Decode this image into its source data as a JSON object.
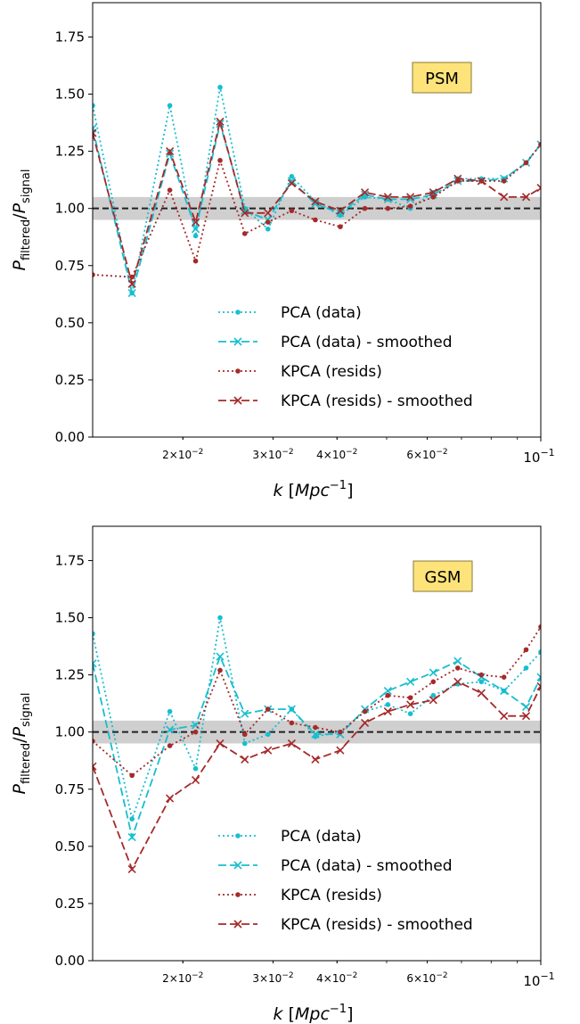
{
  "chart_data": [
    {
      "type": "line",
      "panel_label": "PSM",
      "xlabel": "k [Mpc^{-1}]",
      "ylabel": "P_filtered / P_signal",
      "xscale": "log",
      "xlim": [
        0.01333,
        0.1
      ],
      "ylim": [
        0.0,
        1.9
      ],
      "yticks": [
        "0.00",
        "0.25",
        "0.50",
        "0.75",
        "1.00",
        "1.25",
        "1.50",
        "1.75"
      ],
      "xticks": [
        {
          "value": 0.02,
          "base": "2×10",
          "exp": "−2"
        },
        {
          "value": 0.03,
          "base": "3×10",
          "exp": "−2"
        },
        {
          "value": 0.04,
          "base": "4×10",
          "exp": "−2"
        },
        {
          "value": 0.06,
          "base": "6×10",
          "exp": "−2"
        },
        {
          "value": 0.1,
          "base": "10",
          "exp": "−1"
        }
      ],
      "reference_line": 1.0,
      "band": [
        0.95,
        1.05
      ],
      "grid": false,
      "legend_position": "lower-right",
      "series": [
        {
          "name": "PCA (data)",
          "color": "#17becf",
          "style": "dotted",
          "marker": "dot",
          "x": [
            0.01333,
            0.01591,
            0.01886,
            0.02118,
            0.02364,
            0.02642,
            0.02932,
            0.03262,
            0.03628,
            0.04059,
            0.04534,
            0.05027,
            0.05563,
            0.06166,
            0.06884,
            0.07656,
            0.08474,
            0.09361,
            0.1
          ],
          "y": [
            1.45,
            0.63,
            1.45,
            0.88,
            1.53,
            1.0,
            0.91,
            1.14,
            1.03,
            0.97,
            1.05,
            1.04,
            1.0,
            1.07,
            1.13,
            1.13,
            1.13,
            1.2,
            1.28
          ]
        },
        {
          "name": "PCA (data) - smoothed",
          "color": "#17becf",
          "style": "dashed",
          "marker": "x",
          "x": [
            0.01333,
            0.01591,
            0.01886,
            0.02118,
            0.02364,
            0.02642,
            0.02932,
            0.03262,
            0.03628,
            0.04059,
            0.04534,
            0.05027,
            0.05563,
            0.06166,
            0.06884,
            0.07656,
            0.08474,
            0.09361,
            0.1
          ],
          "y": [
            1.35,
            0.63,
            1.24,
            0.91,
            1.37,
            0.99,
            0.95,
            1.12,
            1.02,
            0.98,
            1.06,
            1.04,
            1.04,
            1.06,
            1.12,
            1.12,
            1.13,
            1.2,
            1.28
          ]
        },
        {
          "name": "KPCA (resids)",
          "color": "#a52a2a",
          "style": "dotted",
          "marker": "dot",
          "x": [
            0.01333,
            0.01591,
            0.01886,
            0.02118,
            0.02364,
            0.02642,
            0.02932,
            0.03262,
            0.03628,
            0.04059,
            0.04534,
            0.05027,
            0.05563,
            0.06166,
            0.06884,
            0.07656,
            0.08474,
            0.09361,
            0.1
          ],
          "y": [
            0.71,
            0.7,
            1.08,
            0.77,
            1.21,
            0.89,
            0.94,
            0.99,
            0.95,
            0.92,
            1.0,
            1.0,
            1.01,
            1.05,
            1.12,
            1.12,
            1.12,
            1.2,
            1.28
          ]
        },
        {
          "name": "KPCA (resids) - smoothed",
          "color": "#a52a2a",
          "style": "dashed",
          "marker": "x",
          "x": [
            0.01333,
            0.01591,
            0.01886,
            0.02118,
            0.02364,
            0.02642,
            0.02932,
            0.03262,
            0.03628,
            0.04059,
            0.04534,
            0.05027,
            0.05563,
            0.06166,
            0.06884,
            0.07656,
            0.08474,
            0.09361,
            0.1
          ],
          "y": [
            1.33,
            0.67,
            1.25,
            0.94,
            1.38,
            0.98,
            0.98,
            1.11,
            1.03,
            0.99,
            1.07,
            1.05,
            1.05,
            1.07,
            1.13,
            1.12,
            1.05,
            1.05,
            1.09
          ]
        }
      ]
    },
    {
      "type": "line",
      "panel_label": "GSM",
      "xlabel": "k [Mpc^{-1}]",
      "ylabel": "P_filtered / P_signal",
      "xscale": "log",
      "xlim": [
        0.01333,
        0.1
      ],
      "ylim": [
        0.0,
        1.9
      ],
      "yticks": [
        "0.00",
        "0.25",
        "0.50",
        "0.75",
        "1.00",
        "1.25",
        "1.50",
        "1.75"
      ],
      "xticks": [
        {
          "value": 0.02,
          "base": "2×10",
          "exp": "−2"
        },
        {
          "value": 0.03,
          "base": "3×10",
          "exp": "−2"
        },
        {
          "value": 0.04,
          "base": "4×10",
          "exp": "−2"
        },
        {
          "value": 0.06,
          "base": "6×10",
          "exp": "−2"
        },
        {
          "value": 0.1,
          "base": "10",
          "exp": "−1"
        }
      ],
      "reference_line": 1.0,
      "band": [
        0.95,
        1.05
      ],
      "grid": false,
      "legend_position": "lower-right",
      "series": [
        {
          "name": "PCA (data)",
          "color": "#17becf",
          "style": "dotted",
          "marker": "dot",
          "x": [
            0.01333,
            0.01591,
            0.01886,
            0.02118,
            0.02364,
            0.02642,
            0.02932,
            0.03262,
            0.03628,
            0.04059,
            0.04534,
            0.05027,
            0.05563,
            0.06166,
            0.06884,
            0.07656,
            0.08474,
            0.09361,
            0.1
          ],
          "y": [
            1.43,
            0.62,
            1.09,
            0.84,
            1.5,
            0.95,
            0.99,
            1.1,
            0.98,
            1.0,
            1.09,
            1.12,
            1.08,
            1.16,
            1.21,
            1.22,
            1.18,
            1.28,
            1.35
          ]
        },
        {
          "name": "PCA (data) - smoothed",
          "color": "#17becf",
          "style": "dashed",
          "marker": "x",
          "x": [
            0.01333,
            0.01591,
            0.01886,
            0.02118,
            0.02364,
            0.02642,
            0.02932,
            0.03262,
            0.03628,
            0.04059,
            0.04534,
            0.05027,
            0.05563,
            0.06166,
            0.06884,
            0.07656,
            0.08474,
            0.09361,
            0.1
          ],
          "y": [
            1.3,
            0.54,
            1.01,
            1.03,
            1.33,
            1.08,
            1.1,
            1.1,
            0.99,
            0.99,
            1.1,
            1.18,
            1.22,
            1.26,
            1.31,
            1.24,
            1.18,
            1.11,
            1.24
          ]
        },
        {
          "name": "KPCA (resids)",
          "color": "#a52a2a",
          "style": "dotted",
          "marker": "dot",
          "x": [
            0.01333,
            0.01591,
            0.01886,
            0.02118,
            0.02364,
            0.02642,
            0.02932,
            0.03262,
            0.03628,
            0.04059,
            0.04534,
            0.05027,
            0.05563,
            0.06166,
            0.06884,
            0.07656,
            0.08474,
            0.09361,
            0.1
          ],
          "y": [
            0.96,
            0.81,
            0.94,
            1.0,
            1.27,
            0.99,
            1.1,
            1.04,
            1.02,
            1.0,
            1.09,
            1.16,
            1.15,
            1.22,
            1.28,
            1.25,
            1.24,
            1.36,
            1.46
          ]
        },
        {
          "name": "KPCA (resids) - smoothed",
          "color": "#a52a2a",
          "style": "dashed",
          "marker": "x",
          "x": [
            0.01333,
            0.01591,
            0.01886,
            0.02118,
            0.02364,
            0.02642,
            0.02932,
            0.03262,
            0.03628,
            0.04059,
            0.04534,
            0.05027,
            0.05563,
            0.06166,
            0.06884,
            0.07656,
            0.08474,
            0.09361,
            0.1
          ],
          "y": [
            0.85,
            0.4,
            0.71,
            0.79,
            0.95,
            0.88,
            0.92,
            0.95,
            0.88,
            0.92,
            1.04,
            1.09,
            1.12,
            1.14,
            1.22,
            1.17,
            1.07,
            1.07,
            1.2
          ]
        }
      ]
    }
  ]
}
